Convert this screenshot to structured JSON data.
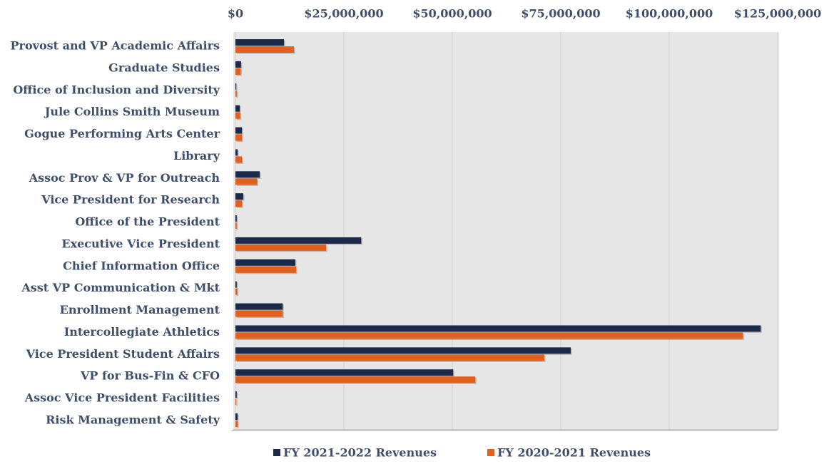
{
  "chart_data": {
    "type": "bar",
    "orientation": "horizontal",
    "categories": [
      "Provost and VP Academic Affairs",
      "Graduate Studies",
      "Office of Inclusion and Diversity",
      "Jule Collins Smith Museum",
      "Gogue Performing Arts Center",
      "Library",
      "Assoc Prov & VP for Outreach",
      "Vice President for Research",
      "Office of the President",
      "Executive Vice President",
      "Chief Information Office",
      "Asst VP Communication & Mkt",
      "Enrollment Management",
      "Intercollegiate Athletics",
      "Vice President Student Affairs",
      "VP for Bus-Fin & CFO",
      "Assoc Vice President Facilities",
      "Risk Management & Safety"
    ],
    "series": [
      {
        "name": "FY 2021-2022 Revenues",
        "color": "#1b2a4a",
        "values": [
          11200000,
          1300000,
          200000,
          1000000,
          1500000,
          500000,
          5600000,
          1800000,
          300000,
          29000000,
          13800000,
          300000,
          10900000,
          121100000,
          77300000,
          50200000,
          300000,
          500000
        ]
      },
      {
        "name": "FY 2020-2021 Revenues",
        "color": "#e2601d",
        "values": [
          13500000,
          1200000,
          300000,
          1100000,
          1500000,
          1500000,
          5000000,
          1500000,
          300000,
          20900000,
          14000000,
          400000,
          10900000,
          117000000,
          71200000,
          55300000,
          200000,
          500000
        ]
      }
    ],
    "xlim": [
      0,
      125000000
    ],
    "xticks": [
      {
        "value": 0,
        "label": "$0"
      },
      {
        "value": 25000000,
        "label": "$25,000,000"
      },
      {
        "value": 50000000,
        "label": "$50,000,000"
      },
      {
        "value": 75000000,
        "label": "$75,000,000"
      },
      {
        "value": 100000000,
        "label": "$100,000,000"
      },
      {
        "value": 125000000,
        "label": "$125,000,000"
      }
    ],
    "grid": true,
    "legend": "bottom"
  }
}
